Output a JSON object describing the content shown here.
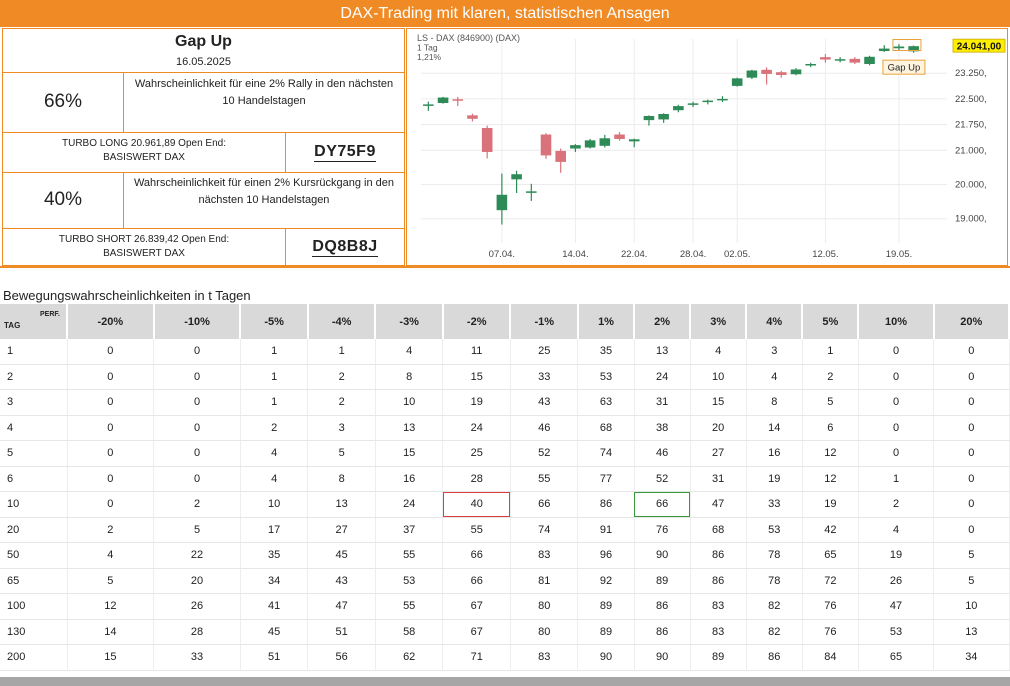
{
  "banner_title": "DAX-Trading mit klaren, statistischen Ansagen",
  "panel": {
    "title": "Gap Up",
    "date": "16.05.2025",
    "rally": {
      "pct": "66%",
      "text_line1": "Wahrscheinlichkeit für eine 2% Rally in den nächsten",
      "text_line2": "10 Handelstagen"
    },
    "turbo_long": {
      "line1": "TURBO LONG 20.961,89 Open End:",
      "line2": "BASISWERT DAX",
      "code": "DY75F9"
    },
    "drop": {
      "pct": "40%",
      "text_line1": "Wahrscheinlichkeit für einen 2% Kursrückgang in den",
      "text_line2": "nächsten 10 Handelstagen"
    },
    "turbo_short": {
      "line1": "TURBO SHORT 26.839,42 Open End:",
      "line2": "BASISWERT DAX",
      "code": "DQ8B8J"
    }
  },
  "chart_data": {
    "type": "candlestick",
    "instrument": "LS - DAX (846900) (DAX)",
    "interval": "1 Tag",
    "change": "1,21%",
    "last_price_label": "24.041,00",
    "annotation": "Gap Up",
    "colors": {
      "up": "#2e8b57",
      "down": "#d9727a"
    },
    "ylim": [
      18700,
      24250
    ],
    "y_ticks": [
      {
        "value": 24041,
        "label": "24.041,00"
      },
      {
        "value": 23250,
        "label": "23.250,"
      },
      {
        "value": 22500,
        "label": "22.500,"
      },
      {
        "value": 21750,
        "label": "21.750,"
      },
      {
        "value": 21000,
        "label": "21.000,"
      },
      {
        "value": 20000,
        "label": "20.000,"
      },
      {
        "value": 19000,
        "label": "19.000,"
      }
    ],
    "x_ticks": [
      {
        "index": 5,
        "label": "07.04."
      },
      {
        "index": 10,
        "label": "14.04."
      },
      {
        "index": 14,
        "label": "22.04."
      },
      {
        "index": 18,
        "label": "28.04."
      },
      {
        "index": 21,
        "label": "02.05."
      },
      {
        "index": 27,
        "label": "12.05."
      },
      {
        "index": 32,
        "label": "19.05."
      }
    ],
    "candles": [
      {
        "o": 22330,
        "h": 22420,
        "l": 22150,
        "c": 22340
      },
      {
        "o": 22380,
        "h": 22560,
        "l": 22360,
        "c": 22540
      },
      {
        "o": 22490,
        "h": 22560,
        "l": 22290,
        "c": 22470
      },
      {
        "o": 22020,
        "h": 22070,
        "l": 21840,
        "c": 21920
      },
      {
        "o": 21650,
        "h": 21720,
        "l": 20760,
        "c": 20950
      },
      {
        "o": 19250,
        "h": 20320,
        "l": 18830,
        "c": 19700
      },
      {
        "o": 20150,
        "h": 20400,
        "l": 19750,
        "c": 20300
      },
      {
        "o": 19780,
        "h": 20020,
        "l": 19520,
        "c": 19800
      },
      {
        "o": 21460,
        "h": 21500,
        "l": 20750,
        "c": 20850
      },
      {
        "o": 20980,
        "h": 21050,
        "l": 20340,
        "c": 20660
      },
      {
        "o": 21050,
        "h": 21180,
        "l": 20950,
        "c": 21150
      },
      {
        "o": 21080,
        "h": 21330,
        "l": 21050,
        "c": 21290
      },
      {
        "o": 21130,
        "h": 21450,
        "l": 21080,
        "c": 21350
      },
      {
        "o": 21460,
        "h": 21530,
        "l": 21280,
        "c": 21330
      },
      {
        "o": 21260,
        "h": 21340,
        "l": 21090,
        "c": 21320
      },
      {
        "o": 21880,
        "h": 22020,
        "l": 21720,
        "c": 22000
      },
      {
        "o": 21900,
        "h": 22080,
        "l": 21800,
        "c": 22060
      },
      {
        "o": 22170,
        "h": 22330,
        "l": 22110,
        "c": 22290
      },
      {
        "o": 22340,
        "h": 22420,
        "l": 22260,
        "c": 22370
      },
      {
        "o": 22420,
        "h": 22480,
        "l": 22340,
        "c": 22450
      },
      {
        "o": 22460,
        "h": 22580,
        "l": 22410,
        "c": 22500
      },
      {
        "o": 22880,
        "h": 23120,
        "l": 22860,
        "c": 23100
      },
      {
        "o": 23120,
        "h": 23350,
        "l": 23080,
        "c": 23330
      },
      {
        "o": 23350,
        "h": 23420,
        "l": 22920,
        "c": 23230
      },
      {
        "o": 23280,
        "h": 23320,
        "l": 23120,
        "c": 23200
      },
      {
        "o": 23220,
        "h": 23400,
        "l": 23190,
        "c": 23360
      },
      {
        "o": 23480,
        "h": 23560,
        "l": 23430,
        "c": 23520
      },
      {
        "o": 23720,
        "h": 23810,
        "l": 23560,
        "c": 23650
      },
      {
        "o": 23660,
        "h": 23720,
        "l": 23570,
        "c": 23660
      },
      {
        "o": 23670,
        "h": 23720,
        "l": 23520,
        "c": 23560
      },
      {
        "o": 23520,
        "h": 23760,
        "l": 23480,
        "c": 23730
      },
      {
        "o": 23900,
        "h": 24070,
        "l": 23870,
        "c": 23970
      },
      {
        "o": 23980,
        "h": 24100,
        "l": 23900,
        "c": 24030
      },
      {
        "o": 23890,
        "h": 24060,
        "l": 23850,
        "c": 24041
      }
    ]
  },
  "table": {
    "title": "Bewegungswahrscheinlichkeiten in t Tagen",
    "corner_perf": "PERF.",
    "corner_tag": "TAG",
    "columns": [
      "-20%",
      "-10%",
      "-5%",
      "-4%",
      "-3%",
      "-2%",
      "-1%",
      "1%",
      "2%",
      "3%",
      "4%",
      "5%",
      "10%",
      "20%"
    ],
    "rows": [
      {
        "tag": "1",
        "values": [
          "0",
          "0",
          "1",
          "1",
          "4",
          "11",
          "25",
          "35",
          "13",
          "4",
          "3",
          "1",
          "0",
          "0"
        ]
      },
      {
        "tag": "2",
        "values": [
          "0",
          "0",
          "1",
          "2",
          "8",
          "15",
          "33",
          "53",
          "24",
          "10",
          "4",
          "2",
          "0",
          "0"
        ]
      },
      {
        "tag": "3",
        "values": [
          "0",
          "0",
          "1",
          "2",
          "10",
          "19",
          "43",
          "63",
          "31",
          "15",
          "8",
          "5",
          "0",
          "0"
        ]
      },
      {
        "tag": "4",
        "values": [
          "0",
          "0",
          "2",
          "3",
          "13",
          "24",
          "46",
          "68",
          "38",
          "20",
          "14",
          "6",
          "0",
          "0"
        ]
      },
      {
        "tag": "5",
        "values": [
          "0",
          "0",
          "4",
          "5",
          "15",
          "25",
          "52",
          "74",
          "46",
          "27",
          "16",
          "12",
          "0",
          "0"
        ]
      },
      {
        "tag": "6",
        "values": [
          "0",
          "0",
          "4",
          "8",
          "16",
          "28",
          "55",
          "77",
          "52",
          "31",
          "19",
          "12",
          "1",
          "0"
        ]
      },
      {
        "tag": "10",
        "values": [
          "0",
          "2",
          "10",
          "13",
          "24",
          "40",
          "66",
          "86",
          "66",
          "47",
          "33",
          "19",
          "2",
          "0"
        ]
      },
      {
        "tag": "20",
        "values": [
          "2",
          "5",
          "17",
          "27",
          "37",
          "55",
          "74",
          "91",
          "76",
          "68",
          "53",
          "42",
          "4",
          "0"
        ]
      },
      {
        "tag": "50",
        "values": [
          "4",
          "22",
          "35",
          "45",
          "55",
          "66",
          "83",
          "96",
          "90",
          "86",
          "78",
          "65",
          "19",
          "5"
        ]
      },
      {
        "tag": "65",
        "values": [
          "5",
          "20",
          "34",
          "43",
          "53",
          "66",
          "81",
          "92",
          "89",
          "86",
          "78",
          "72",
          "26",
          "5"
        ]
      },
      {
        "tag": "100",
        "values": [
          "12",
          "26",
          "41",
          "47",
          "55",
          "67",
          "80",
          "89",
          "86",
          "83",
          "82",
          "76",
          "47",
          "10"
        ]
      },
      {
        "tag": "130",
        "values": [
          "14",
          "28",
          "45",
          "51",
          "58",
          "67",
          "80",
          "89",
          "86",
          "83",
          "82",
          "76",
          "53",
          "13"
        ]
      },
      {
        "tag": "200",
        "values": [
          "15",
          "33",
          "51",
          "56",
          "62",
          "71",
          "83",
          "90",
          "90",
          "89",
          "86",
          "84",
          "65",
          "34"
        ]
      }
    ]
  }
}
